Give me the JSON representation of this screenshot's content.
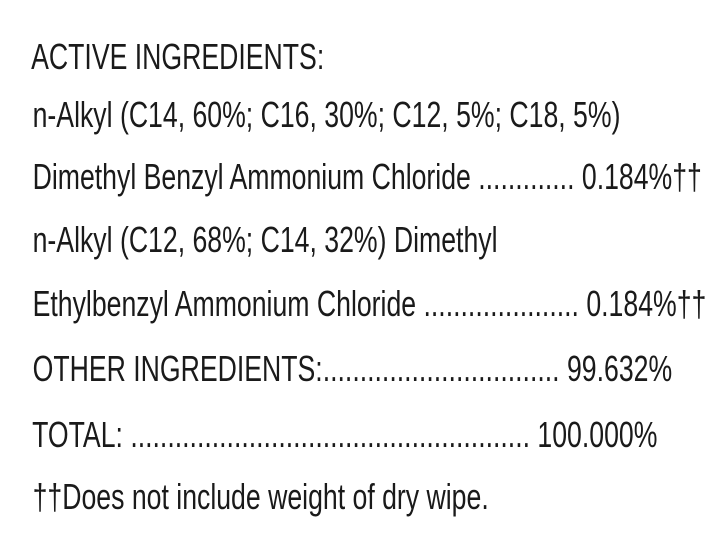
{
  "label": {
    "colors": {
      "text": "#1a1a1a",
      "background": "#ffffff"
    },
    "rows": [
      {
        "type": "heading",
        "text": "ACTIVE INGREDIENTS:"
      },
      {
        "type": "text",
        "text": "n-Alkyl (C14, 60%; C16, 30%; C12, 5%; C18, 5%)"
      },
      {
        "type": "dotted",
        "label": "Dimethyl Benzyl Ammonium Chloride",
        "leader": " ............. ",
        "value": "0.184%††"
      },
      {
        "type": "text",
        "text": "n-Alkyl (C12, 68%; C14, 32%) Dimethyl"
      },
      {
        "type": "dotted",
        "label": "Ethylbenzyl Ammonium Chloride",
        "leader": " ..................... ",
        "value": "0.184%††"
      },
      {
        "type": "dotted",
        "label": "OTHER INGREDIENTS:",
        "leader": "................................ ",
        "value": "99.632%"
      },
      {
        "type": "dotted",
        "label": "TOTAL:",
        "leader": " ...................................................... ",
        "value": "100.000%"
      },
      {
        "type": "footnote",
        "text": "††Does not include weight of dry wipe."
      }
    ]
  }
}
